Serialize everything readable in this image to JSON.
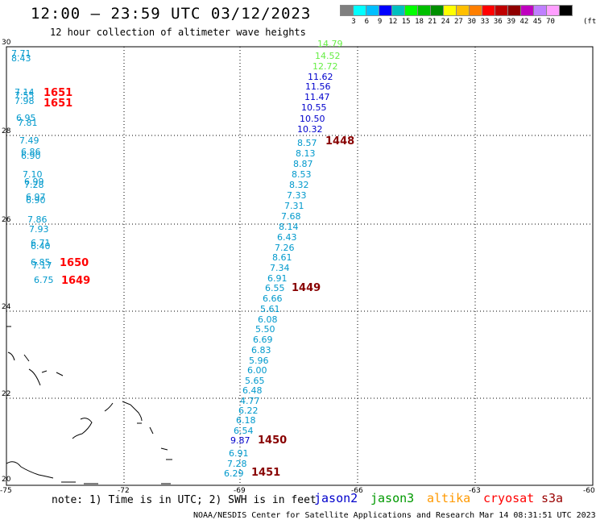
{
  "title": "12:00 – 23:59 UTC 03/12/2023",
  "subtitle": "12 hour collection of altimeter wave heights",
  "legend": {
    "colors": [
      "#7f7f7f",
      "#00ffff",
      "#00bfff",
      "#0000ff",
      "#00bfbf",
      "#00ff00",
      "#00bf00",
      "#008f00",
      "#ffff00",
      "#ffbf00",
      "#ff7f00",
      "#ff0000",
      "#bf0000",
      "#8f0000",
      "#bf00bf",
      "#bf7fff",
      "#ff9fff",
      "#000000"
    ],
    "labels": [
      "3",
      "6",
      "9",
      "12",
      "15",
      "18",
      "21",
      "24",
      "27",
      "30",
      "33",
      "36",
      "39",
      "42",
      "45",
      "70"
    ],
    "unit": "(ft)"
  },
  "axes": {
    "lat_labels": [
      "30",
      "28",
      "26",
      "24",
      "22",
      "20"
    ],
    "lon_labels": [
      "-75",
      "-72",
      "-69",
      "-66",
      "-63",
      "-60"
    ]
  },
  "satellites": [
    {
      "name": "jason2",
      "color": "#0000cc"
    },
    {
      "name": "jason3",
      "color": "#009900"
    },
    {
      "name": "altika",
      "color": "#ff9900"
    },
    {
      "name": "cryosat",
      "color": "#ff0000"
    },
    {
      "name": "s3a",
      "color": "#990000"
    }
  ],
  "note": "note: 1) Time is in UTC; 2) SWH is in feet",
  "credit": "NOAA/NESDIS Center for Satellite Applications and Research   Mar 14 08:31:51 UTC 2023",
  "left_track": [
    {
      "v": "7.71",
      "c": "#0099cc"
    },
    {
      "v": "8.43",
      "c": "#0099cc"
    },
    {
      "v": "7.14",
      "c": "#0099cc"
    },
    {
      "v": "7.55",
      "c": "#0099cc"
    },
    {
      "v": "7.98",
      "c": "#0099cc"
    },
    {
      "v": "6.95",
      "c": "#0099cc"
    },
    {
      "v": "7.81",
      "c": "#0099cc"
    },
    {
      "v": "7.49",
      "c": "#0099cc"
    },
    {
      "v": "6.86",
      "c": "#0099cc"
    },
    {
      "v": "6.90",
      "c": "#0099cc"
    },
    {
      "v": "7.10",
      "c": "#0099cc"
    },
    {
      "v": "6.99",
      "c": "#0099cc"
    },
    {
      "v": "7.28",
      "c": "#0099cc"
    },
    {
      "v": "6.97",
      "c": "#0099cc"
    },
    {
      "v": "6.90",
      "c": "#0099cc"
    },
    {
      "v": "7.86",
      "c": "#0099cc"
    },
    {
      "v": "7.93",
      "c": "#0099cc"
    },
    {
      "v": "6.71",
      "c": "#0099cc"
    },
    {
      "v": "6.40",
      "c": "#0099cc"
    },
    {
      "v": "6.85",
      "c": "#0099cc"
    },
    {
      "v": "7.17",
      "c": "#0099cc"
    },
    {
      "v": "6.75",
      "c": "#0099cc"
    }
  ],
  "right_track": [
    {
      "v": "14.79",
      "c": "#66ee44"
    },
    {
      "v": "14.52",
      "c": "#66ee44"
    },
    {
      "v": "12.72",
      "c": "#66ee44"
    },
    {
      "v": "11.62",
      "c": "#0000cc"
    },
    {
      "v": "11.56",
      "c": "#0000cc"
    },
    {
      "v": "11.47",
      "c": "#0000cc"
    },
    {
      "v": "10.55",
      "c": "#0000cc"
    },
    {
      "v": "10.50",
      "c": "#0000cc"
    },
    {
      "v": "10.32",
      "c": "#0000cc"
    },
    {
      "v": "8.57",
      "c": "#0099cc"
    },
    {
      "v": "8.13",
      "c": "#0099cc"
    },
    {
      "v": "8.87",
      "c": "#0099cc"
    },
    {
      "v": "8.53",
      "c": "#0099cc"
    },
    {
      "v": "8.32",
      "c": "#0099cc"
    },
    {
      "v": "7.33",
      "c": "#0099cc"
    },
    {
      "v": "7.31",
      "c": "#0099cc"
    },
    {
      "v": "7.68",
      "c": "#0099cc"
    },
    {
      "v": "8.14",
      "c": "#0099cc"
    },
    {
      "v": "6.43",
      "c": "#0099cc"
    },
    {
      "v": "7.26",
      "c": "#0099cc"
    },
    {
      "v": "8.61",
      "c": "#0099cc"
    },
    {
      "v": "7.34",
      "c": "#0099cc"
    },
    {
      "v": "6.91",
      "c": "#0099cc"
    },
    {
      "v": "6.55",
      "c": "#0099cc"
    },
    {
      "v": "6.66",
      "c": "#0099cc"
    },
    {
      "v": "5.61",
      "c": "#0099cc"
    },
    {
      "v": "6.08",
      "c": "#0099cc"
    },
    {
      "v": "5.50",
      "c": "#0099cc"
    },
    {
      "v": "6.69",
      "c": "#0099cc"
    },
    {
      "v": "6.83",
      "c": "#0099cc"
    },
    {
      "v": "5.96",
      "c": "#0099cc"
    },
    {
      "v": "6.00",
      "c": "#0099cc"
    },
    {
      "v": "5.65",
      "c": "#0099cc"
    },
    {
      "v": "6.48",
      "c": "#0099cc"
    },
    {
      "v": "4.77",
      "c": "#0099cc"
    },
    {
      "v": "6.22",
      "c": "#0099cc"
    },
    {
      "v": "6.18",
      "c": "#0099cc"
    },
    {
      "v": "6.54",
      "c": "#0099cc"
    },
    {
      "v": "9.87",
      "c": "#0000cc"
    },
    {
      "v": "6.91",
      "c": "#0099cc"
    },
    {
      "v": "7.28",
      "c": "#0099cc"
    },
    {
      "v": "6.29",
      "c": "#0099cc"
    }
  ],
  "time_labels_left": [
    {
      "v": "1651",
      "c": "#ff0000"
    },
    {
      "v": "1651",
      "c": "#ff0000"
    },
    {
      "v": "1650",
      "c": "#ff0000"
    },
    {
      "v": "1649",
      "c": "#ff0000"
    }
  ],
  "time_labels_right": [
    {
      "v": "1448",
      "c": "#880000"
    },
    {
      "v": "1449",
      "c": "#880000"
    },
    {
      "v": "1450",
      "c": "#880000"
    },
    {
      "v": "1451",
      "c": "#880000"
    }
  ]
}
